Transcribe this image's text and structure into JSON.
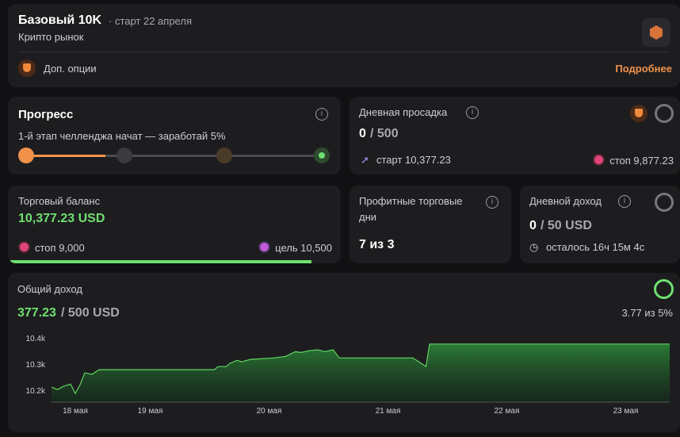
{
  "header": {
    "title": "Базовый 10K",
    "start": "· старт 22 апреля",
    "market": "Крипто рынок",
    "options": "Доп. опции",
    "details": "Подробнее"
  },
  "progress": {
    "title": "Прогресс",
    "subtitle": "1-й этап челленджа начат — заработай 5%"
  },
  "daily_drawdown": {
    "title": "Дневная просадка",
    "value": "0",
    "limit": "/ 500",
    "start": "старт 10,377.23",
    "stop": "стоп 9,877.23"
  },
  "balance": {
    "title": "Торговый баланс",
    "value": "10,377.23 USD",
    "stop": "стоп 9,000",
    "target": "цель 10,500"
  },
  "profit_days": {
    "title": "Профитные торговые дни",
    "value": "7 из 3"
  },
  "daily_income": {
    "title": "Дневной доход",
    "value": "0",
    "limit": "/ 50 USD",
    "remaining": "осталось 16ч 15м 4с"
  },
  "total_income": {
    "title": "Общий доход",
    "value": "377.23",
    "limit": "/ 500 USD",
    "percent": "3.77 из 5%"
  },
  "chart_data": {
    "type": "area",
    "color": "#5fd35f",
    "x": [
      18.17,
      18.22,
      18.27,
      18.33,
      18.37,
      18.41,
      18.45,
      18.51,
      18.57,
      19.54,
      19.57,
      19.64,
      19.67,
      19.73,
      19.77,
      19.84,
      19.94,
      20.04,
      20.14,
      20.22,
      20.27,
      20.34,
      20.41,
      20.47,
      20.54,
      20.59,
      21.21,
      21.26,
      21.32,
      21.35,
      23.37
    ],
    "values": [
      10212,
      10203,
      10215,
      10224,
      10188,
      10221,
      10267,
      10261,
      10279,
      10279,
      10291,
      10291,
      10303,
      10315,
      10309,
      10318,
      10321,
      10324,
      10330,
      10348,
      10345,
      10352,
      10355,
      10348,
      10355,
      10324,
      10324,
      10309,
      10291,
      10377,
      10377
    ],
    "xlim": [
      18.17,
      23.37
    ],
    "ylim": [
      10155,
      10425
    ],
    "xticks": [
      {
        "value": 18.37,
        "label": "18 мая"
      },
      {
        "value": 19,
        "label": "19 мая"
      },
      {
        "value": 20,
        "label": "20 мая"
      },
      {
        "value": 21,
        "label": "21 мая"
      },
      {
        "value": 22,
        "label": "22 мая"
      },
      {
        "value": 23,
        "label": "23 мая"
      }
    ],
    "yticks": [
      {
        "value": 10200,
        "label": "10.2k"
      },
      {
        "value": 10300,
        "label": "10.3k"
      },
      {
        "value": 10400,
        "label": "10.4k"
      }
    ]
  }
}
